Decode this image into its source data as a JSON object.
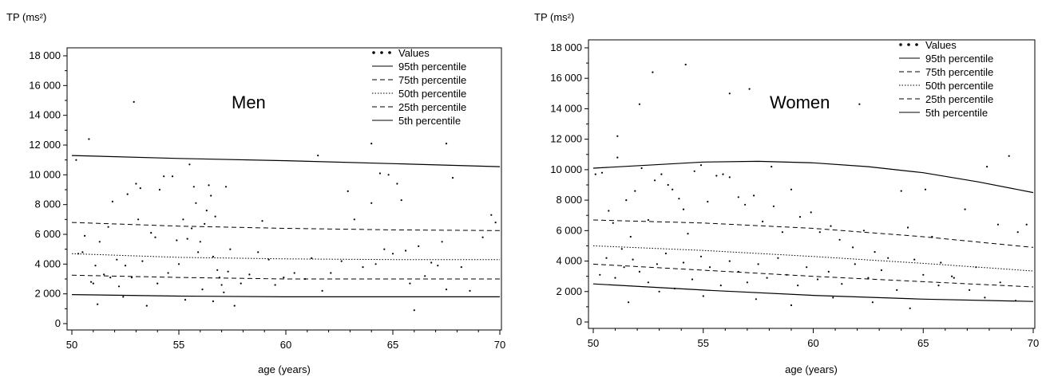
{
  "chart_data": [
    {
      "type": "scatter",
      "panel_label": "Men",
      "ylabel": "TP (ms²)",
      "xlabel": "age (years)",
      "xlim": [
        50,
        70
      ],
      "ylim": [
        0,
        18000
      ],
      "xticks": [
        "50",
        "55",
        "60",
        "65",
        "70"
      ],
      "yticks": [
        "0",
        "2 000",
        "4 000",
        "6 000",
        "8 000",
        "10 000",
        "12 000",
        "14 000",
        "16 000",
        "18 000"
      ],
      "legend_position": "top-right",
      "legend": [
        {
          "label": "Values",
          "style": "dots"
        },
        {
          "label": "95th percentile",
          "style": "solid"
        },
        {
          "label": "75th percentile",
          "style": "dashed"
        },
        {
          "label": "50th percentile",
          "style": "dotted"
        },
        {
          "label": "25th percentile",
          "style": "dashed"
        },
        {
          "label": "5th percentile",
          "style": "solid"
        }
      ],
      "series": [
        {
          "name": "95th percentile",
          "style": "solid",
          "x": [
            50,
            55,
            60,
            65,
            70
          ],
          "y": [
            11300,
            11100,
            10950,
            10750,
            10550
          ]
        },
        {
          "name": "75th percentile",
          "style": "dashed",
          "x": [
            50,
            55,
            60,
            65,
            70
          ],
          "y": [
            6800,
            6550,
            6400,
            6300,
            6250
          ]
        },
        {
          "name": "50th percentile",
          "style": "dotted",
          "x": [
            50,
            55,
            60,
            65,
            70
          ],
          "y": [
            4700,
            4450,
            4350,
            4300,
            4300
          ]
        },
        {
          "name": "25th percentile",
          "style": "dashed",
          "x": [
            50,
            55,
            60,
            65,
            70
          ],
          "y": [
            3250,
            3100,
            3000,
            3000,
            3000
          ]
        },
        {
          "name": "5th percentile",
          "style": "solid",
          "x": [
            50,
            55,
            60,
            65,
            70
          ],
          "y": [
            1950,
            1850,
            1800,
            1800,
            1800
          ]
        }
      ],
      "points": [
        [
          50.2,
          11000
        ],
        [
          50.8,
          12400
        ],
        [
          52.9,
          14900
        ],
        [
          61.5,
          11300
        ],
        [
          64.0,
          12100
        ],
        [
          67.5,
          12100
        ],
        [
          50.3,
          4700
        ],
        [
          50.5,
          4800
        ],
        [
          50.6,
          5900
        ],
        [
          50.9,
          2800
        ],
        [
          51.0,
          2700
        ],
        [
          51.1,
          3900
        ],
        [
          51.2,
          1300
        ],
        [
          51.3,
          5500
        ],
        [
          51.5,
          3300
        ],
        [
          51.7,
          6500
        ],
        [
          51.9,
          8200
        ],
        [
          52.1,
          4300
        ],
        [
          52.4,
          1800
        ],
        [
          52.5,
          3900
        ],
        [
          52.6,
          8700
        ],
        [
          52.8,
          3100
        ],
        [
          53.0,
          9400
        ],
        [
          53.1,
          7000
        ],
        [
          53.2,
          9100
        ],
        [
          53.3,
          4200
        ],
        [
          53.5,
          1200
        ],
        [
          53.7,
          6100
        ],
        [
          53.9,
          5800
        ],
        [
          54.1,
          9000
        ],
        [
          54.3,
          9900
        ],
        [
          54.5,
          3400
        ],
        [
          54.7,
          9900
        ],
        [
          54.9,
          5600
        ],
        [
          55.0,
          4000
        ],
        [
          55.2,
          7000
        ],
        [
          55.4,
          5700
        ],
        [
          55.5,
          10700
        ],
        [
          55.6,
          6400
        ],
        [
          55.7,
          9200
        ],
        [
          55.8,
          8100
        ],
        [
          55.9,
          4800
        ],
        [
          56.0,
          5500
        ],
        [
          56.1,
          2300
        ],
        [
          56.2,
          6700
        ],
        [
          56.3,
          7600
        ],
        [
          56.4,
          9300
        ],
        [
          56.5,
          8600
        ],
        [
          56.6,
          4500
        ],
        [
          56.7,
          7200
        ],
        [
          56.8,
          3600
        ],
        [
          56.9,
          3100
        ],
        [
          57.0,
          2600
        ],
        [
          57.1,
          2100
        ],
        [
          57.2,
          9200
        ],
        [
          57.3,
          3500
        ],
        [
          57.4,
          5000
        ],
        [
          57.6,
          1200
        ],
        [
          57.9,
          2700
        ],
        [
          58.3,
          3300
        ],
        [
          58.7,
          4800
        ],
        [
          58.9,
          6900
        ],
        [
          59.2,
          4300
        ],
        [
          59.5,
          2600
        ],
        [
          59.9,
          3100
        ],
        [
          60.4,
          3400
        ],
        [
          60.9,
          3000
        ],
        [
          61.2,
          4400
        ],
        [
          61.7,
          2200
        ],
        [
          62.1,
          3400
        ],
        [
          62.6,
          4200
        ],
        [
          62.9,
          8900
        ],
        [
          63.2,
          7000
        ],
        [
          63.6,
          3800
        ],
        [
          64.0,
          8100
        ],
        [
          64.2,
          4000
        ],
        [
          64.4,
          10100
        ],
        [
          64.6,
          5000
        ],
        [
          64.8,
          10000
        ],
        [
          65.0,
          4700
        ],
        [
          65.2,
          9400
        ],
        [
          65.4,
          8300
        ],
        [
          65.6,
          4900
        ],
        [
          65.8,
          2700
        ],
        [
          66.0,
          900
        ],
        [
          66.2,
          5200
        ],
        [
          66.5,
          3200
        ],
        [
          66.8,
          4100
        ],
        [
          67.1,
          3900
        ],
        [
          67.3,
          5500
        ],
        [
          67.5,
          2300
        ],
        [
          67.8,
          9800
        ],
        [
          68.2,
          3800
        ],
        [
          68.6,
          2200
        ],
        [
          69.2,
          5800
        ],
        [
          69.6,
          7300
        ],
        [
          69.8,
          6800
        ],
        [
          55.3,
          1600
        ],
        [
          56.6,
          1500
        ],
        [
          54.0,
          2700
        ],
        [
          52.2,
          2500
        ],
        [
          51.8,
          3100
        ]
      ]
    },
    {
      "type": "scatter",
      "panel_label": "Women",
      "ylabel": "TP (ms²)",
      "xlabel": "age (years)",
      "xlim": [
        50,
        70
      ],
      "ylim": [
        0,
        18000
      ],
      "xticks": [
        "50",
        "55",
        "60",
        "65",
        "70"
      ],
      "yticks": [
        "0",
        "2 000",
        "4 000",
        "6 000",
        "8 000",
        "10 000",
        "12 000",
        "14 000",
        "16 000",
        "18 000"
      ],
      "legend_position": "top-right",
      "legend": [
        {
          "label": "Values",
          "style": "dots"
        },
        {
          "label": "95th percentile",
          "style": "solid"
        },
        {
          "label": "75th percentile",
          "style": "dashed"
        },
        {
          "label": "50th percentile",
          "style": "dotted"
        },
        {
          "label": "25th percentile",
          "style": "dashed"
        },
        {
          "label": "5th percentile",
          "style": "solid"
        }
      ],
      "series": [
        {
          "name": "95th percentile",
          "style": "solid",
          "x": [
            50,
            52.5,
            55,
            57.5,
            60,
            62.5,
            65,
            67.5,
            70
          ],
          "y": [
            10100,
            10300,
            10500,
            10550,
            10450,
            10200,
            9800,
            9200,
            8500
          ]
        },
        {
          "name": "75th percentile",
          "style": "dashed",
          "x": [
            50,
            55,
            60,
            65,
            70
          ],
          "y": [
            6700,
            6500,
            6150,
            5600,
            4900
          ]
        },
        {
          "name": "50th percentile",
          "style": "dotted",
          "x": [
            50,
            55,
            60,
            65,
            70
          ],
          "y": [
            5000,
            4700,
            4300,
            3850,
            3350
          ]
        },
        {
          "name": "25th percentile",
          "style": "dashed",
          "x": [
            50,
            55,
            60,
            65,
            70
          ],
          "y": [
            3800,
            3400,
            3000,
            2650,
            2300
          ]
        },
        {
          "name": "5th percentile",
          "style": "solid",
          "x": [
            50,
            55,
            60,
            65,
            70
          ],
          "y": [
            2500,
            2100,
            1750,
            1500,
            1350
          ]
        }
      ],
      "points": [
        [
          54.2,
          16900
        ],
        [
          52.7,
          16400
        ],
        [
          57.1,
          15300
        ],
        [
          56.2,
          15000
        ],
        [
          52.1,
          14300
        ],
        [
          62.1,
          14300
        ],
        [
          51.1,
          12200
        ],
        [
          58.1,
          10200
        ],
        [
          50.1,
          9700
        ],
        [
          50.4,
          9800
        ],
        [
          50.7,
          7300
        ],
        [
          50.9,
          6500
        ],
        [
          51.1,
          10800
        ],
        [
          51.3,
          4800
        ],
        [
          51.5,
          8000
        ],
        [
          51.7,
          5600
        ],
        [
          51.9,
          8600
        ],
        [
          52.2,
          10100
        ],
        [
          52.5,
          6700
        ],
        [
          52.8,
          9300
        ],
        [
          53.1,
          9700
        ],
        [
          53.4,
          9000
        ],
        [
          53.6,
          8700
        ],
        [
          53.9,
          8100
        ],
        [
          54.1,
          7400
        ],
        [
          54.3,
          5800
        ],
        [
          54.6,
          9900
        ],
        [
          54.9,
          10300
        ],
        [
          55.2,
          7900
        ],
        [
          55.6,
          9600
        ],
        [
          55.9,
          9700
        ],
        [
          56.2,
          9500
        ],
        [
          56.6,
          8200
        ],
        [
          56.9,
          7700
        ],
        [
          57.3,
          8300
        ],
        [
          57.7,
          6600
        ],
        [
          58.2,
          7600
        ],
        [
          58.6,
          5900
        ],
        [
          59.0,
          8700
        ],
        [
          59.4,
          6900
        ],
        [
          59.9,
          7200
        ],
        [
          60.3,
          5900
        ],
        [
          60.8,
          6300
        ],
        [
          61.2,
          5400
        ],
        [
          61.8,
          4900
        ],
        [
          62.3,
          6000
        ],
        [
          62.8,
          4600
        ],
        [
          63.4,
          4200
        ],
        [
          64.0,
          8600
        ],
        [
          64.3,
          6200
        ],
        [
          64.6,
          4100
        ],
        [
          65.1,
          8700
        ],
        [
          65.4,
          5600
        ],
        [
          65.8,
          3900
        ],
        [
          66.3,
          3000
        ],
        [
          66.9,
          7400
        ],
        [
          67.4,
          3600
        ],
        [
          67.9,
          10200
        ],
        [
          68.4,
          6400
        ],
        [
          68.9,
          10900
        ],
        [
          69.3,
          5900
        ],
        [
          69.7,
          6400
        ],
        [
          50.3,
          3100
        ],
        [
          50.6,
          4200
        ],
        [
          51.0,
          2900
        ],
        [
          51.4,
          3600
        ],
        [
          51.8,
          4100
        ],
        [
          52.1,
          3300
        ],
        [
          52.5,
          2600
        ],
        [
          52.9,
          3800
        ],
        [
          53.3,
          4500
        ],
        [
          53.7,
          2200
        ],
        [
          54.1,
          3900
        ],
        [
          54.5,
          2800
        ],
        [
          54.9,
          4300
        ],
        [
          55.3,
          3600
        ],
        [
          55.8,
          2400
        ],
        [
          56.2,
          4000
        ],
        [
          56.6,
          3300
        ],
        [
          57.0,
          2600
        ],
        [
          57.5,
          3800
        ],
        [
          57.9,
          2900
        ],
        [
          58.4,
          4200
        ],
        [
          58.8,
          3100
        ],
        [
          59.3,
          2400
        ],
        [
          59.7,
          3600
        ],
        [
          60.2,
          2800
        ],
        [
          60.7,
          3300
        ],
        [
          61.3,
          2500
        ],
        [
          61.9,
          3800
        ],
        [
          62.5,
          2900
        ],
        [
          63.1,
          3400
        ],
        [
          63.8,
          2100
        ],
        [
          64.4,
          900
        ],
        [
          65.0,
          3100
        ],
        [
          65.7,
          2400
        ],
        [
          66.4,
          2900
        ],
        [
          67.1,
          2100
        ],
        [
          67.8,
          1600
        ],
        [
          68.5,
          2600
        ],
        [
          69.2,
          1400
        ],
        [
          51.6,
          1300
        ],
        [
          53.0,
          2000
        ],
        [
          55.0,
          1700
        ],
        [
          57.4,
          1500
        ],
        [
          59.0,
          1100
        ],
        [
          60.9,
          1600
        ],
        [
          62.7,
          1300
        ]
      ]
    }
  ]
}
